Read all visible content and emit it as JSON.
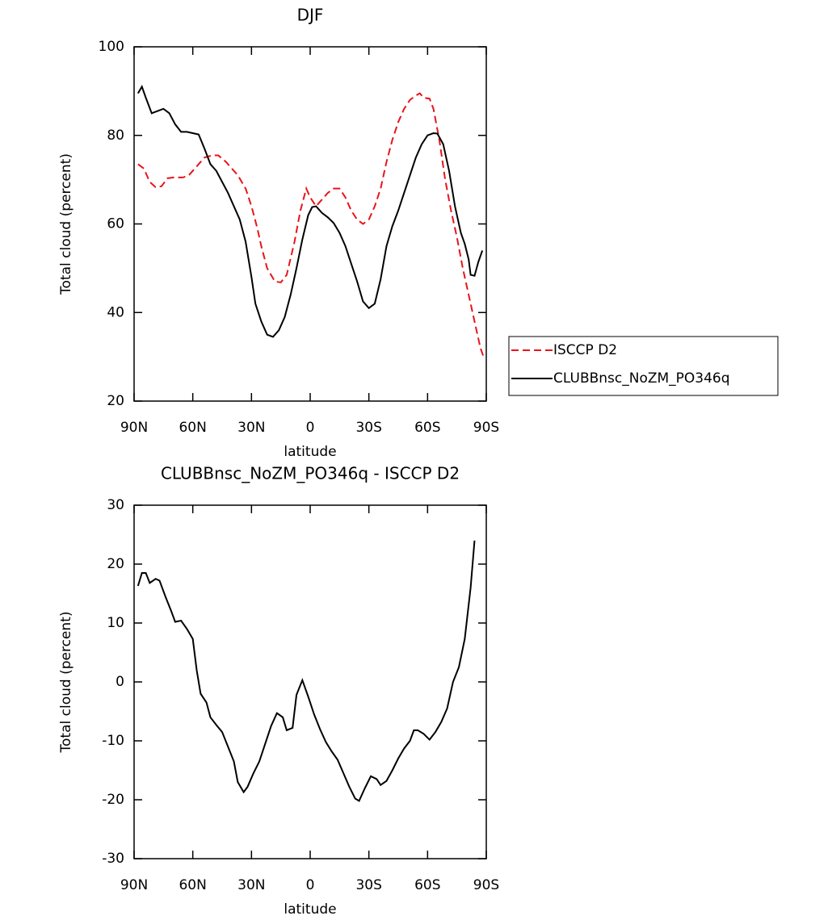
{
  "chart_data": [
    {
      "type": "line",
      "title": "DJF",
      "xlabel": "latitude",
      "ylabel": "Total cloud (percent)",
      "xlim": [
        90,
        -90
      ],
      "ylim": [
        20,
        100
      ],
      "xticks": [
        {
          "value": 90,
          "label": "90N"
        },
        {
          "value": 60,
          "label": "60N"
        },
        {
          "value": 30,
          "label": "30N"
        },
        0,
        {
          "value": -30,
          "label": "30S"
        },
        {
          "value": -60,
          "label": "60S"
        },
        {
          "value": -90,
          "label": "90S"
        }
      ],
      "yticks": [
        20,
        40,
        60,
        80,
        100
      ],
      "legend": "right",
      "series": [
        {
          "name": "ISCCP D2",
          "color": "#e8141b",
          "dash": true,
          "x": [
            88,
            85,
            82,
            79,
            76,
            73,
            70,
            65,
            62,
            58,
            54,
            50,
            47,
            43,
            40,
            37,
            33,
            30,
            27,
            25,
            22,
            18,
            15,
            12,
            8,
            5,
            2,
            0,
            -3,
            -6,
            -9,
            -12,
            -15,
            -18,
            -21,
            -24,
            -27,
            -30,
            -33,
            -36,
            -39,
            -42,
            -45,
            -48,
            -51,
            -54,
            -56,
            -58,
            -61,
            -63,
            -66,
            -69,
            -72,
            -75,
            -78,
            -81,
            -84,
            -87,
            -89
          ],
          "values": [
            73.5,
            72.5,
            69.5,
            68.3,
            68.5,
            70.3,
            70.5,
            70.5,
            71,
            73,
            75,
            75.5,
            75.5,
            74,
            72.5,
            71,
            68,
            64,
            59,
            55,
            50,
            47,
            46.8,
            48.5,
            56,
            63,
            68,
            66,
            64,
            65.5,
            67,
            68,
            68,
            66,
            63,
            61,
            60,
            61,
            64,
            68,
            74,
            79,
            83,
            86,
            88,
            89,
            89.5,
            88.5,
            88.3,
            86,
            79,
            70,
            63,
            57,
            50,
            44,
            38,
            32,
            29.5
          ]
        },
        {
          "name": "CLUBBnsc_NoZM_PO346q",
          "color": "#000000",
          "dash": false,
          "x": [
            88,
            86,
            84,
            81,
            78,
            75,
            72,
            69,
            66,
            63,
            60,
            57,
            54,
            51,
            48,
            45,
            42,
            39,
            36,
            33,
            30,
            28,
            25,
            22,
            19,
            16,
            13,
            10,
            7,
            4,
            1,
            -1,
            -3,
            -6,
            -9,
            -12,
            -15,
            -18,
            -21,
            -24,
            -27,
            -30,
            -33,
            -36,
            -39,
            -42,
            -45,
            -48,
            -51,
            -54,
            -57,
            -60,
            -63,
            -65,
            -68,
            -71,
            -74,
            -77,
            -79,
            -81,
            -82,
            -84,
            -86,
            -88
          ],
          "values": [
            89.5,
            91,
            88.5,
            85,
            85.5,
            86,
            85,
            82.5,
            80.8,
            80.8,
            80.5,
            80.2,
            77,
            73.5,
            72,
            69.5,
            67,
            64,
            61,
            56,
            48,
            42,
            38,
            35,
            34.5,
            36,
            39,
            44,
            50,
            56.5,
            62,
            63.8,
            64,
            62.5,
            61.5,
            60.2,
            58,
            55,
            51,
            47,
            42.5,
            41,
            42,
            47.5,
            55,
            59.5,
            63,
            67,
            71,
            75,
            78,
            80,
            80.5,
            80.4,
            78,
            72,
            64,
            58,
            55.5,
            52,
            48.5,
            48.3,
            51.5,
            54
          ]
        }
      ]
    },
    {
      "type": "line",
      "title": "CLUBBnsc_NoZM_PO346q - ISCCP D2",
      "xlabel": "latitude",
      "ylabel": "Total cloud (percent)",
      "xlim": [
        90,
        -90
      ],
      "ylim": [
        -30,
        30
      ],
      "xticks": [
        {
          "value": 90,
          "label": "90N"
        },
        {
          "value": 60,
          "label": "60N"
        },
        {
          "value": 30,
          "label": "30N"
        },
        0,
        {
          "value": -30,
          "label": "30S"
        },
        {
          "value": -60,
          "label": "60S"
        },
        {
          "value": -90,
          "label": "90S"
        }
      ],
      "yticks": [
        -30,
        -20,
        -10,
        0,
        10,
        20,
        30
      ],
      "series": [
        {
          "color": "#000000",
          "dash": false,
          "x": [
            88,
            86,
            84,
            82,
            79,
            77,
            74,
            71,
            69,
            66,
            63,
            60,
            58,
            56,
            53,
            51,
            48,
            45,
            42,
            39,
            37,
            34,
            32,
            29,
            26,
            23,
            20,
            17,
            14,
            12,
            9,
            7,
            4,
            1,
            -2,
            -5,
            -8,
            -11,
            -14,
            -17,
            -20,
            -23,
            -25,
            -28,
            -31,
            -34,
            -36,
            -39,
            -42,
            -45,
            -48,
            -51,
            -53,
            -55,
            -58,
            -61,
            -64,
            -67,
            -70,
            -73,
            -76,
            -79,
            -82,
            -84
          ],
          "values": [
            16.3,
            18.5,
            18.5,
            16.8,
            17.5,
            17.2,
            14.5,
            12,
            10.2,
            10.4,
            9,
            7.3,
            2,
            -2,
            -3.5,
            -6,
            -7.3,
            -8.5,
            -11,
            -13.5,
            -17,
            -18.7,
            -17.8,
            -15.5,
            -13.5,
            -10.5,
            -7.5,
            -5.3,
            -6,
            -8.2,
            -7.8,
            -2.2,
            0.3,
            -2.5,
            -5.5,
            -8,
            -10.2,
            -11.8,
            -13.2,
            -15.5,
            -17.8,
            -19.8,
            -20.2,
            -18,
            -16,
            -16.5,
            -17.5,
            -16.8,
            -15,
            -13,
            -11.3,
            -10,
            -8.2,
            -8.2,
            -8.8,
            -9.8,
            -8.5,
            -6.8,
            -4.5,
            0,
            2.5,
            7.3,
            16,
            24
          ]
        }
      ]
    }
  ]
}
